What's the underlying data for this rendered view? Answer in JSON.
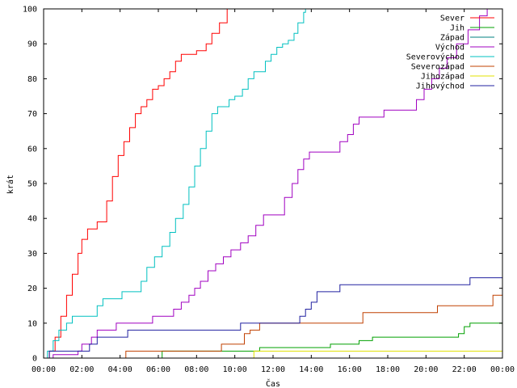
{
  "chart_data": {
    "type": "line",
    "title": "",
    "xlabel": "Čas",
    "ylabel": "krát",
    "xlim": [
      0,
      24
    ],
    "ylim": [
      0,
      100
    ],
    "grid": false,
    "legend_position": "top-right",
    "x_ticks": [
      "00:00",
      "02:00",
      "04:00",
      "06:00",
      "08:00",
      "10:00",
      "12:00",
      "14:00",
      "16:00",
      "18:00",
      "20:00",
      "22:00",
      "00:00"
    ],
    "y_ticks": [
      0,
      10,
      20,
      30,
      40,
      50,
      60,
      70,
      80,
      90,
      100
    ],
    "series": [
      {
        "name": "Sever",
        "color": "#ff0000",
        "points": [
          [
            0,
            0
          ],
          [
            0.3,
            2
          ],
          [
            0.6,
            6
          ],
          [
            0.9,
            12
          ],
          [
            1.2,
            18
          ],
          [
            1.5,
            24
          ],
          [
            1.8,
            30
          ],
          [
            2.0,
            34
          ],
          [
            2.3,
            37
          ],
          [
            2.6,
            37
          ],
          [
            2.8,
            39
          ],
          [
            3.1,
            39
          ],
          [
            3.3,
            45
          ],
          [
            3.6,
            52
          ],
          [
            3.9,
            58
          ],
          [
            4.2,
            62
          ],
          [
            4.5,
            66
          ],
          [
            4.8,
            70
          ],
          [
            5.1,
            72
          ],
          [
            5.4,
            74
          ],
          [
            5.7,
            77
          ],
          [
            6.0,
            78
          ],
          [
            6.3,
            80
          ],
          [
            6.6,
            82
          ],
          [
            6.9,
            85
          ],
          [
            7.2,
            87
          ],
          [
            7.5,
            87
          ],
          [
            8.0,
            88
          ],
          [
            8.5,
            90
          ],
          [
            8.8,
            93
          ],
          [
            9.2,
            96
          ],
          [
            9.6,
            100
          ]
        ]
      },
      {
        "name": "Jih",
        "color": "#00a000",
        "points": [
          [
            0,
            0
          ],
          [
            6.2,
            0
          ],
          [
            6.2,
            2
          ],
          [
            11.3,
            2
          ],
          [
            11.3,
            3
          ],
          [
            14.5,
            3
          ],
          [
            15.0,
            4
          ],
          [
            16.3,
            4
          ],
          [
            16.5,
            5
          ],
          [
            17.0,
            5
          ],
          [
            17.2,
            6
          ],
          [
            21.5,
            6
          ],
          [
            21.7,
            7
          ],
          [
            22.0,
            9
          ],
          [
            22.3,
            10
          ],
          [
            24,
            10
          ]
        ]
      },
      {
        "name": "Západ",
        "color": "#008080",
        "points": [
          [
            0,
            0
          ],
          [
            24,
            0
          ]
        ]
      },
      {
        "name": "Východ",
        "color": "#a000c0",
        "points": [
          [
            0,
            0
          ],
          [
            0.5,
            1
          ],
          [
            1.8,
            2
          ],
          [
            2.0,
            4
          ],
          [
            2.5,
            6
          ],
          [
            2.8,
            8
          ],
          [
            3.5,
            8
          ],
          [
            3.8,
            10
          ],
          [
            5.5,
            10
          ],
          [
            5.7,
            12
          ],
          [
            6.5,
            12
          ],
          [
            6.8,
            14
          ],
          [
            7.2,
            16
          ],
          [
            7.6,
            18
          ],
          [
            7.9,
            20
          ],
          [
            8.2,
            22
          ],
          [
            8.6,
            25
          ],
          [
            9.0,
            27
          ],
          [
            9.4,
            29
          ],
          [
            9.8,
            31
          ],
          [
            10.3,
            33
          ],
          [
            10.7,
            35
          ],
          [
            11.1,
            38
          ],
          [
            11.5,
            41
          ],
          [
            12.3,
            41
          ],
          [
            12.6,
            46
          ],
          [
            13.0,
            50
          ],
          [
            13.3,
            54
          ],
          [
            13.6,
            57
          ],
          [
            13.9,
            59
          ],
          [
            15.2,
            59
          ],
          [
            15.5,
            62
          ],
          [
            15.9,
            64
          ],
          [
            16.2,
            67
          ],
          [
            16.5,
            69
          ],
          [
            17.5,
            69
          ],
          [
            17.8,
            71
          ],
          [
            19.2,
            71
          ],
          [
            19.5,
            74
          ],
          [
            19.9,
            77
          ],
          [
            20.3,
            80
          ],
          [
            20.7,
            83
          ],
          [
            21.1,
            86
          ],
          [
            21.6,
            90
          ],
          [
            22.2,
            94
          ],
          [
            22.8,
            98
          ],
          [
            23.2,
            100
          ]
        ]
      },
      {
        "name": "Severovýchod",
        "color": "#00c0c0",
        "points": [
          [
            0,
            0
          ],
          [
            0.2,
            2
          ],
          [
            0.5,
            5
          ],
          [
            0.8,
            8
          ],
          [
            1.2,
            10
          ],
          [
            1.5,
            12
          ],
          [
            2.5,
            12
          ],
          [
            2.8,
            15
          ],
          [
            3.1,
            17
          ],
          [
            3.8,
            17
          ],
          [
            4.1,
            19
          ],
          [
            4.8,
            19
          ],
          [
            5.1,
            22
          ],
          [
            5.4,
            26
          ],
          [
            5.8,
            29
          ],
          [
            6.2,
            32
          ],
          [
            6.6,
            36
          ],
          [
            6.9,
            40
          ],
          [
            7.3,
            44
          ],
          [
            7.6,
            49
          ],
          [
            7.9,
            55
          ],
          [
            8.2,
            60
          ],
          [
            8.5,
            65
          ],
          [
            8.8,
            70
          ],
          [
            9.1,
            72
          ],
          [
            9.4,
            72
          ],
          [
            9.7,
            74
          ],
          [
            10.0,
            75
          ],
          [
            10.4,
            77
          ],
          [
            10.7,
            80
          ],
          [
            11.0,
            82
          ],
          [
            11.3,
            82
          ],
          [
            11.6,
            85
          ],
          [
            11.9,
            87
          ],
          [
            12.2,
            89
          ],
          [
            12.5,
            90
          ],
          [
            12.8,
            91
          ],
          [
            13.1,
            93
          ],
          [
            13.3,
            96
          ],
          [
            13.6,
            99
          ],
          [
            13.7,
            100
          ]
        ]
      },
      {
        "name": "Severozápad",
        "color": "#c04000",
        "points": [
          [
            0,
            0
          ],
          [
            4.3,
            0
          ],
          [
            4.3,
            2
          ],
          [
            9.3,
            2
          ],
          [
            9.3,
            4
          ],
          [
            10.2,
            4
          ],
          [
            10.5,
            7
          ],
          [
            10.8,
            8
          ],
          [
            11.2,
            8
          ],
          [
            11.3,
            10
          ],
          [
            16.7,
            10
          ],
          [
            16.7,
            13
          ],
          [
            20.6,
            13
          ],
          [
            20.6,
            15
          ],
          [
            23.5,
            15
          ],
          [
            23.5,
            18
          ],
          [
            24,
            18
          ]
        ]
      },
      {
        "name": "Jihozápad",
        "color": "#e0e000",
        "points": [
          [
            0,
            0
          ],
          [
            11.0,
            0
          ],
          [
            11.0,
            2
          ],
          [
            24,
            2
          ]
        ]
      },
      {
        "name": "Jihovýchod",
        "color": "#2020a0",
        "points": [
          [
            0,
            0
          ],
          [
            0.3,
            2
          ],
          [
            2.2,
            2
          ],
          [
            2.4,
            4
          ],
          [
            2.8,
            6
          ],
          [
            4.2,
            6
          ],
          [
            4.4,
            8
          ],
          [
            10.0,
            8
          ],
          [
            10.3,
            10
          ],
          [
            13.2,
            10
          ],
          [
            13.4,
            12
          ],
          [
            13.7,
            14
          ],
          [
            14.0,
            16
          ],
          [
            14.3,
            19
          ],
          [
            15.4,
            19
          ],
          [
            15.5,
            21
          ],
          [
            22.2,
            21
          ],
          [
            22.3,
            23
          ],
          [
            24,
            23
          ]
        ]
      }
    ]
  }
}
